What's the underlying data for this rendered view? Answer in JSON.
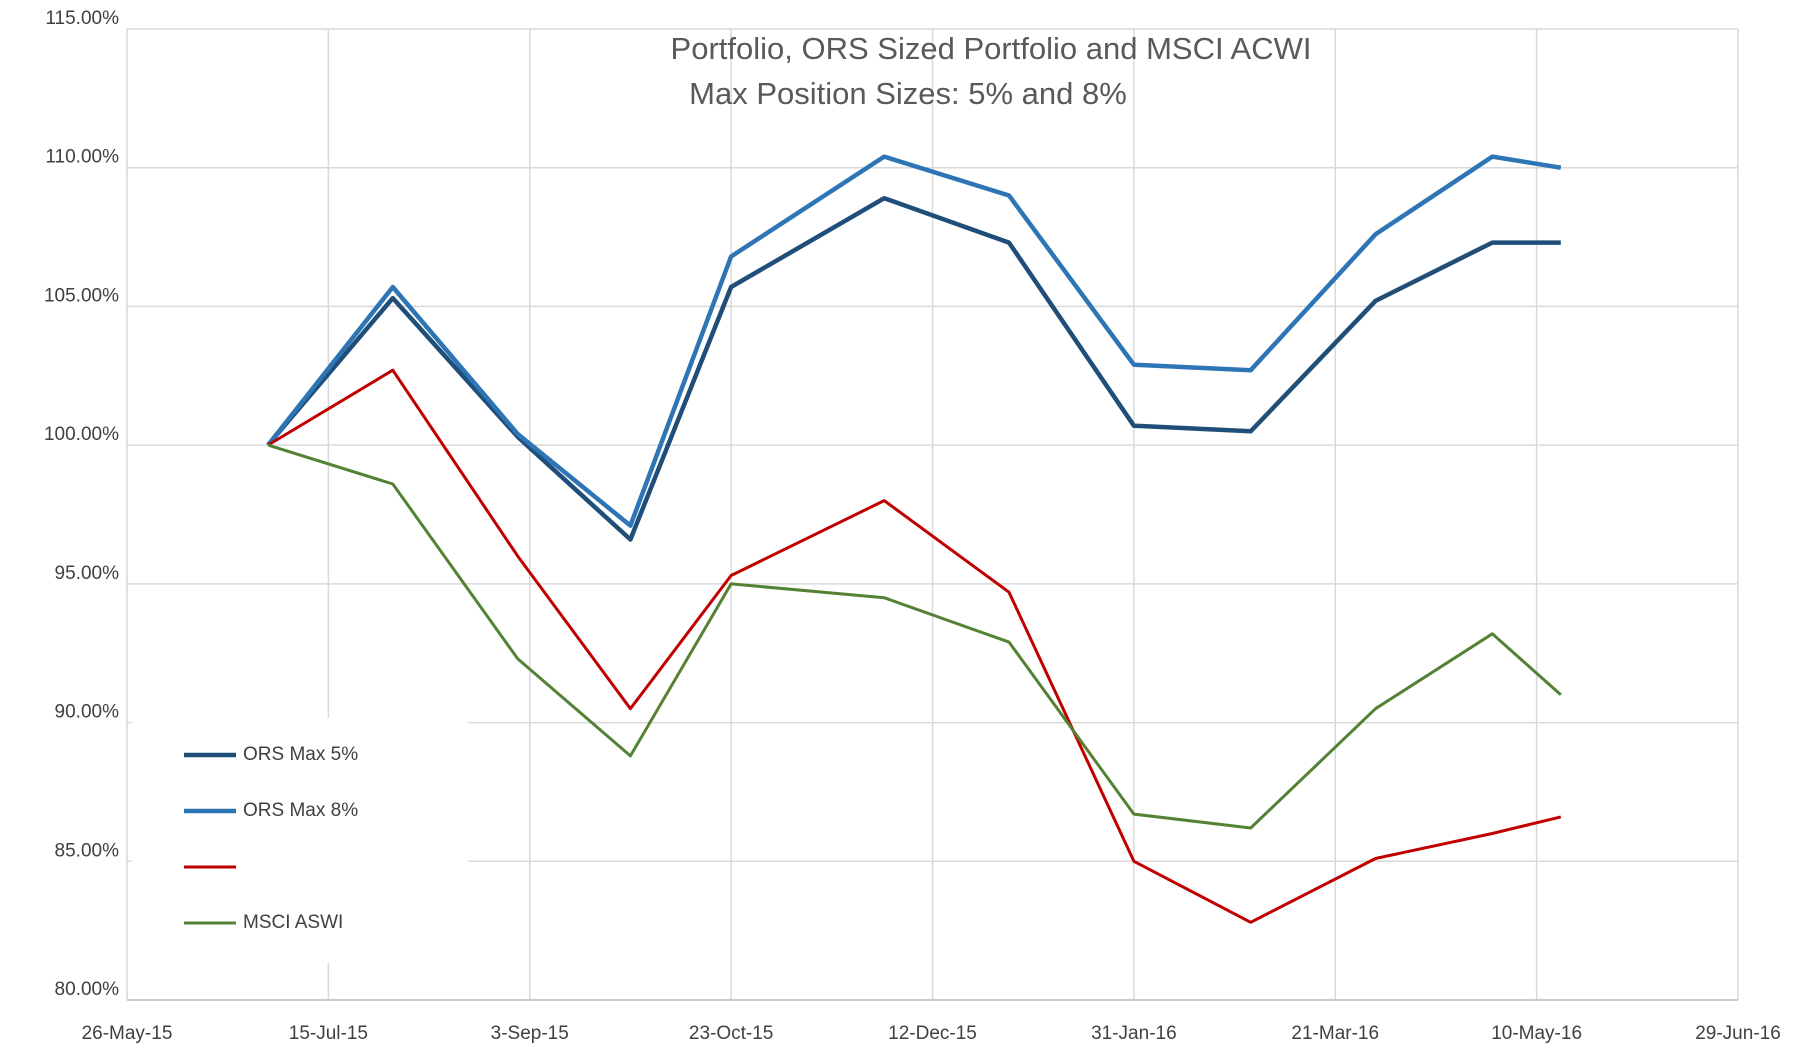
{
  "chart_data": {
    "type": "line",
    "title": "Portfolio, ORS Sized Portfolio and MSCI ACWI",
    "subtitle": "Max Position Sizes: 5% and 8%",
    "x": [
      "2015-06-30",
      "2015-07-31",
      "2015-08-31",
      "2015-09-28",
      "2015-10-23",
      "2015-11-30",
      "2015-12-31",
      "2016-01-31",
      "2016-02-29",
      "2016-03-31",
      "2016-04-29",
      "2016-05-16"
    ],
    "series": [
      {
        "name": "ORS Max 5%",
        "color": "#1f4e79",
        "values": [
          100,
          105.3,
          100.3,
          96.6,
          105.7,
          108.9,
          107.3,
          100.7,
          100.5,
          105.2,
          107.3,
          107.3
        ]
      },
      {
        "name": "ORS Max 8%",
        "color": "#2e75b6",
        "values": [
          100,
          105.7,
          100.4,
          97.1,
          106.8,
          110.4,
          109.0,
          102.9,
          102.7,
          107.6,
          110.4,
          110.0
        ]
      },
      {
        "color": "#c00000",
        "values": [
          100,
          102.7,
          96.0,
          90.5,
          95.3,
          98.0,
          94.7,
          85.0,
          82.8,
          85.1,
          86.0,
          86.6
        ]
      },
      {
        "name": "MSCI ASWI",
        "color": "#548235",
        "values": [
          100,
          98.6,
          92.3,
          88.8,
          95.0,
          94.5,
          92.9,
          86.7,
          86.2,
          90.5,
          93.2,
          91.0
        ]
      }
    ],
    "xlim": [
      "2015-05-26",
      "2016-06-29"
    ],
    "xticks": [
      {
        "value": "2015-05-26",
        "label": "26-May-15"
      },
      {
        "value": "2015-07-15",
        "label": "15-Jul-15"
      },
      {
        "value": "2015-09-03",
        "label": "3-Sep-15"
      },
      {
        "value": "2015-10-23",
        "label": "23-Oct-15"
      },
      {
        "value": "2015-12-12",
        "label": "12-Dec-15"
      },
      {
        "value": "2016-01-31",
        "label": "31-Jan-16"
      },
      {
        "value": "2016-03-21",
        "label": "21-Mar-16"
      },
      {
        "value": "2016-05-10",
        "label": "10-May-16"
      },
      {
        "value": "2016-06-29",
        "label": "29-Jun-16"
      }
    ],
    "ylim": [
      80,
      115
    ],
    "yticks": [
      {
        "value": 80,
        "label": "80.00%"
      },
      {
        "value": 85,
        "label": "85.00%"
      },
      {
        "value": 90,
        "label": "90.00%"
      },
      {
        "value": 95,
        "label": "95.00%"
      },
      {
        "value": 100,
        "label": "100.00%"
      },
      {
        "value": 105,
        "label": "105.00%"
      },
      {
        "value": 110,
        "label": "110.00%"
      },
      {
        "value": 115,
        "label": "115.00%"
      }
    ],
    "grid": true,
    "legend": "bottom-left"
  }
}
